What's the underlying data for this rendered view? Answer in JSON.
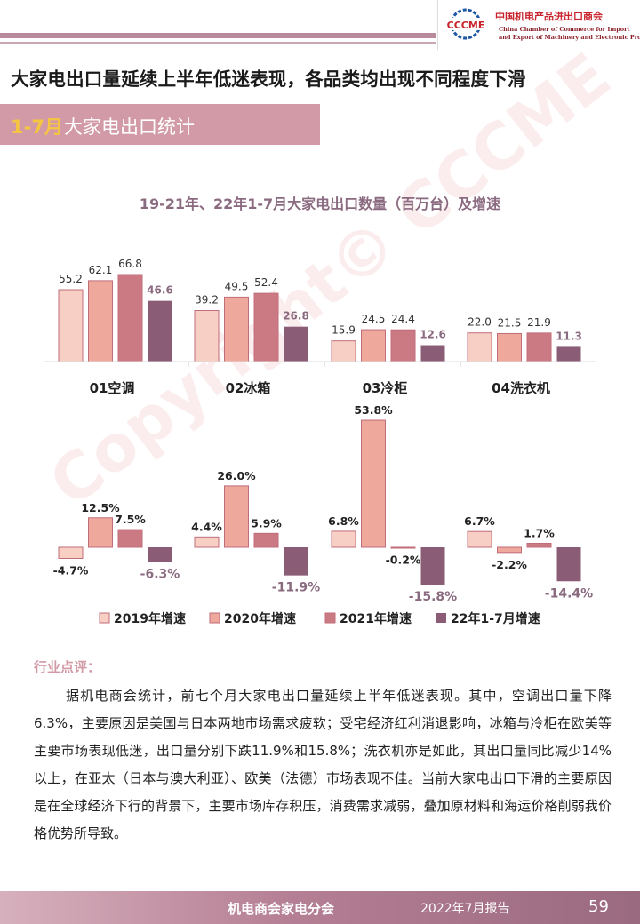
{
  "header": {
    "logo_text": "CCCME",
    "org_cn": "中国机电产品进出口商会",
    "org_en_1": "China Chamber of Commerce for Import",
    "org_en_2": "and Export of Machinery and Electronic Products"
  },
  "headline": "大家电出口量延续上半年低迷表现，各品类均出现不同程度下滑",
  "section": {
    "highlight": "1-7月",
    "rest": "大家电出口统计"
  },
  "chart_data": [
    {
      "type": "bar",
      "title": "19-21年、22年1-7月大家电出口数量（百万台）及增速",
      "categories": [
        "01空调",
        "02冰箱",
        "03冷柜",
        "04洗衣机"
      ],
      "series": [
        {
          "name": "2019年增速",
          "values": [
            55.2,
            39.2,
            15.9,
            22.0
          ]
        },
        {
          "name": "2020年增速",
          "values": [
            62.1,
            49.5,
            24.5,
            21.5
          ]
        },
        {
          "name": "2021年增速",
          "values": [
            66.8,
            52.4,
            24.4,
            21.9
          ]
        },
        {
          "name": "22年1-7月增速",
          "values": [
            46.6,
            26.8,
            12.6,
            11.3
          ]
        }
      ],
      "value_labels": [
        [
          "55.2",
          "62.1",
          "66.8",
          "46.6"
        ],
        [
          "39.2",
          "49.5",
          "52.4",
          "26.8"
        ],
        [
          "15.9",
          "24.5",
          "24.4",
          "12.6"
        ],
        [
          "22.0",
          "21.5",
          "21.9",
          "11.3"
        ]
      ],
      "unit": "百万台",
      "ylim": [
        0,
        70
      ]
    },
    {
      "type": "bar",
      "categories": [
        "01空调",
        "02冰箱",
        "03冷柜",
        "04洗衣机"
      ],
      "series": [
        {
          "name": "2019年增速",
          "values": [
            -4.7,
            4.4,
            6.8,
            6.7
          ]
        },
        {
          "name": "2020年增速",
          "values": [
            12.5,
            26.0,
            53.8,
            -2.2
          ]
        },
        {
          "name": "2021年增速",
          "values": [
            7.5,
            5.9,
            -0.2,
            1.7
          ]
        },
        {
          "name": "22年1-7月增速",
          "values": [
            -6.3,
            -11.9,
            -15.8,
            -14.4
          ]
        }
      ],
      "value_labels": [
        [
          "-4.7%",
          "12.5%",
          "7.5%",
          "-6.3%"
        ],
        [
          "4.4%",
          "26.0%",
          "5.9%",
          "-11.9%"
        ],
        [
          "6.8%",
          "53.8%",
          "-0.2%",
          "-15.8%"
        ],
        [
          "6.7%",
          "-2.2%",
          "1.7%",
          "-14.4%"
        ]
      ],
      "unit": "%",
      "ylim": [
        -20,
        55
      ],
      "legend": "bottom"
    }
  ],
  "colors": {
    "s1": "#f8cfc4",
    "s2": "#eea89c",
    "s3": "#cb7a84",
    "s4": "#8a5c76",
    "label_accent": "#8a6a7f",
    "pink": "#d29aa7"
  },
  "watermark": "Copyright© CCCME",
  "comment": {
    "title": "行业点评：",
    "text": "据机电商会统计，前七个月大家电出口量延续上半年低迷表现。其中，空调出口量下降6.3%，主要原因是美国与日本两地市场需求疲软；受宅经济红利消退影响，冰箱与冷柜在欧美等主要市场表现低迷，出口量分别下跌11.9%和15.8%；洗衣机亦是如此，其出口量同比减少14%以上，在亚太（日本与澳大利亚）、欧美（法德）市场表现不佳。当前大家电出口下滑的主要原因是在全球经济下行的背景下，主要市场库存积压，消费需求减弱，叠加原材料和海运价格削弱我价格优势所导致。"
  },
  "footer": {
    "org": "机电商会家电分会",
    "report": "2022年7月报告",
    "page": "59"
  }
}
